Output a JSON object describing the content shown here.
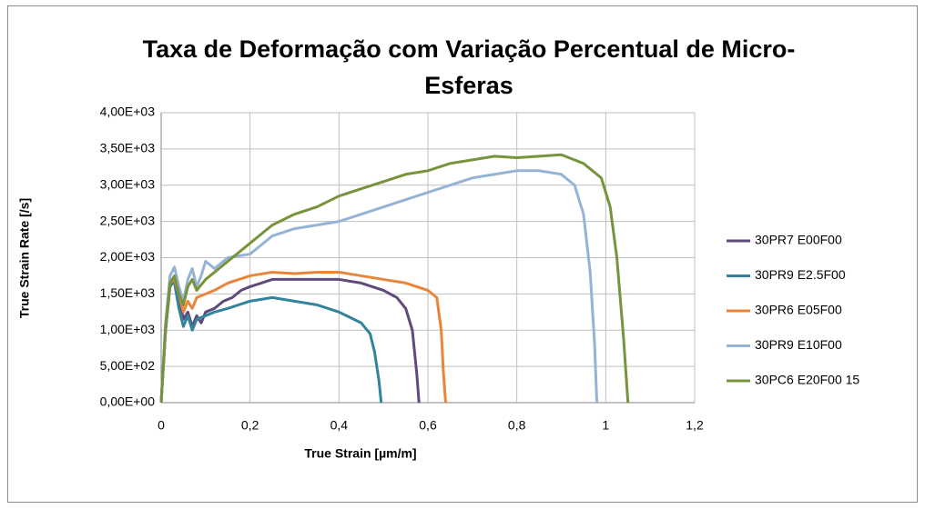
{
  "chart_data": {
    "type": "line",
    "title": "Taxa de Deformação com Variação Percentual de Micro-Esferas",
    "x_label": "True Strain [µm/m]",
    "y_label": "True Strain Rate [/s]",
    "xlim": [
      0,
      1.2
    ],
    "xticks": [
      0,
      {
        "value": 0.2,
        "label": "0,2"
      },
      {
        "value": 0.4,
        "label": "0,4"
      },
      {
        "value": 0.6,
        "label": "0,6"
      },
      {
        "value": 0.8,
        "label": "0,8"
      },
      1,
      {
        "value": 1.2,
        "label": "1,2"
      }
    ],
    "ylim": [
      0,
      4000
    ],
    "yticks": [
      {
        "value": 0,
        "label": "0,00E+00"
      },
      {
        "value": 500,
        "label": "5,00E+02"
      },
      {
        "value": 1000,
        "label": "1,00E+03"
      },
      {
        "value": 1500,
        "label": "1,50E+03"
      },
      {
        "value": 2000,
        "label": "2,00E+03"
      },
      {
        "value": 2500,
        "label": "2,50E+03"
      },
      {
        "value": 3000,
        "label": "3,00E+03"
      },
      {
        "value": 3500,
        "label": "3,50E+03"
      },
      {
        "value": 4000,
        "label": "4,00E+03"
      }
    ],
    "grid": true,
    "legend": "right",
    "series": [
      {
        "name": "30PR7 E00F00",
        "color": "#604a7b",
        "x": [
          0,
          0.01,
          0.02,
          0.03,
          0.04,
          0.05,
          0.06,
          0.07,
          0.08,
          0.09,
          0.1,
          0.12,
          0.14,
          0.16,
          0.18,
          0.2,
          0.25,
          0.3,
          0.35,
          0.4,
          0.45,
          0.5,
          0.53,
          0.55,
          0.565,
          0.575,
          0.58
        ],
        "values": [
          0,
          1000,
          1600,
          1700,
          1450,
          1150,
          1250,
          1050,
          1200,
          1100,
          1250,
          1300,
          1400,
          1450,
          1550,
          1600,
          1700,
          1700,
          1700,
          1700,
          1650,
          1550,
          1450,
          1300,
          1000,
          400,
          0
        ]
      },
      {
        "name": "30PR9 E2.5F00",
        "color": "#31849b",
        "x": [
          0,
          0.01,
          0.02,
          0.03,
          0.04,
          0.05,
          0.06,
          0.07,
          0.08,
          0.1,
          0.12,
          0.15,
          0.2,
          0.25,
          0.3,
          0.35,
          0.4,
          0.45,
          0.47,
          0.48,
          0.49,
          0.495
        ],
        "values": [
          0,
          1000,
          1650,
          1650,
          1300,
          1050,
          1200,
          1000,
          1150,
          1200,
          1250,
          1300,
          1400,
          1450,
          1400,
          1350,
          1250,
          1100,
          950,
          700,
          300,
          0
        ]
      },
      {
        "name": "30PR6 E05F00",
        "color": "#e8853a",
        "x": [
          0,
          0.01,
          0.02,
          0.03,
          0.04,
          0.05,
          0.06,
          0.07,
          0.08,
          0.1,
          0.12,
          0.15,
          0.2,
          0.25,
          0.3,
          0.35,
          0.4,
          0.45,
          0.5,
          0.55,
          0.6,
          0.62,
          0.63,
          0.635,
          0.64
        ],
        "values": [
          0,
          1050,
          1650,
          1700,
          1500,
          1250,
          1400,
          1300,
          1450,
          1500,
          1550,
          1650,
          1750,
          1800,
          1780,
          1800,
          1800,
          1750,
          1700,
          1650,
          1550,
          1450,
          1000,
          400,
          0
        ]
      },
      {
        "name": "30PR9 E10F00",
        "color": "#95b3d7",
        "x": [
          0,
          0.01,
          0.02,
          0.03,
          0.04,
          0.05,
          0.06,
          0.07,
          0.08,
          0.09,
          0.1,
          0.12,
          0.15,
          0.2,
          0.25,
          0.3,
          0.35,
          0.4,
          0.45,
          0.5,
          0.55,
          0.6,
          0.65,
          0.7,
          0.75,
          0.8,
          0.85,
          0.9,
          0.93,
          0.95,
          0.965,
          0.975,
          0.98
        ],
        "values": [
          0,
          1100,
          1750,
          1870,
          1600,
          1400,
          1700,
          1850,
          1600,
          1750,
          1950,
          1850,
          2000,
          2050,
          2300,
          2400,
          2450,
          2500,
          2600,
          2700,
          2800,
          2900,
          3000,
          3100,
          3150,
          3200,
          3200,
          3150,
          3000,
          2600,
          1800,
          800,
          0
        ]
      },
      {
        "name": "30PC6 E20F00 15",
        "color": "#77933c",
        "x": [
          0,
          0.01,
          0.02,
          0.03,
          0.04,
          0.05,
          0.06,
          0.07,
          0.08,
          0.1,
          0.12,
          0.15,
          0.2,
          0.25,
          0.3,
          0.35,
          0.4,
          0.45,
          0.5,
          0.55,
          0.6,
          0.65,
          0.7,
          0.75,
          0.8,
          0.85,
          0.9,
          0.95,
          0.99,
          1.01,
          1.025,
          1.04,
          1.05
        ],
        "values": [
          0,
          1050,
          1650,
          1750,
          1500,
          1350,
          1600,
          1700,
          1550,
          1700,
          1800,
          1950,
          2200,
          2450,
          2600,
          2700,
          2850,
          2950,
          3050,
          3150,
          3200,
          3300,
          3350,
          3400,
          3380,
          3400,
          3420,
          3300,
          3100,
          2700,
          2000,
          900,
          0
        ]
      }
    ]
  }
}
